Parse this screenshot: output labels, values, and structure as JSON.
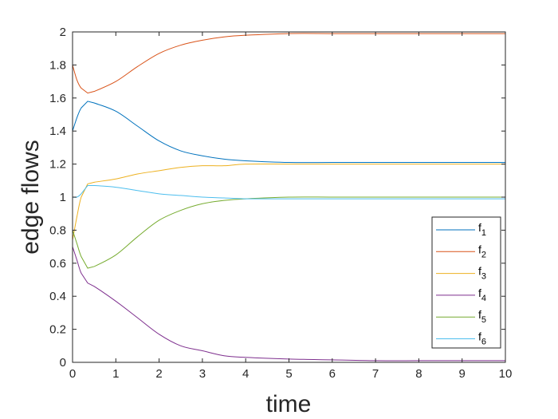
{
  "chart_data": {
    "type": "line",
    "title": "",
    "xlabel": "time",
    "ylabel": "edge flows",
    "xlim": [
      0,
      10
    ],
    "ylim": [
      0,
      2
    ],
    "xticks": [
      0,
      1,
      2,
      3,
      4,
      5,
      6,
      7,
      8,
      9,
      10
    ],
    "yticks": [
      0,
      0.2,
      0.4,
      0.6,
      0.8,
      1,
      1.2,
      1.4,
      1.6,
      1.8,
      2
    ],
    "xtick_labels": [
      "0",
      "1",
      "2",
      "3",
      "4",
      "5",
      "6",
      "7",
      "8",
      "9",
      "10"
    ],
    "ytick_labels": [
      "0",
      "0.2",
      "0.4",
      "0.6",
      "0.8",
      "1",
      "1.2",
      "1.4",
      "1.6",
      "1.8",
      "2"
    ],
    "grid": false,
    "legend_position": "lower right (inside)",
    "x": [
      0,
      0.1,
      0.2,
      0.35,
      0.5,
      1,
      1.5,
      2,
      2.5,
      3,
      3.5,
      4,
      5,
      6,
      7,
      8,
      9,
      10
    ],
    "series": [
      {
        "name": "f1",
        "label_main": "f",
        "label_sub": "1",
        "color": "#0072BD",
        "values": [
          1.4,
          1.48,
          1.54,
          1.58,
          1.57,
          1.52,
          1.43,
          1.34,
          1.28,
          1.25,
          1.23,
          1.22,
          1.21,
          1.21,
          1.21,
          1.21,
          1.21,
          1.21
        ]
      },
      {
        "name": "f2",
        "label_main": "f",
        "label_sub": "2",
        "color": "#D95319",
        "values": [
          1.8,
          1.71,
          1.66,
          1.63,
          1.64,
          1.7,
          1.79,
          1.87,
          1.92,
          1.95,
          1.97,
          1.98,
          1.99,
          1.99,
          1.99,
          1.99,
          1.99,
          1.99
        ]
      },
      {
        "name": "f3",
        "label_main": "f",
        "label_sub": "3",
        "color": "#EDB120",
        "values": [
          0.74,
          0.88,
          1.0,
          1.08,
          1.09,
          1.11,
          1.14,
          1.16,
          1.18,
          1.19,
          1.19,
          1.2,
          1.2,
          1.2,
          1.2,
          1.2,
          1.2,
          1.2
        ]
      },
      {
        "name": "f4",
        "label_main": "f",
        "label_sub": "4",
        "color": "#7E2F8E",
        "values": [
          0.7,
          0.62,
          0.54,
          0.48,
          0.46,
          0.37,
          0.27,
          0.17,
          0.1,
          0.07,
          0.04,
          0.03,
          0.02,
          0.015,
          0.01,
          0.01,
          0.01,
          0.01
        ]
      },
      {
        "name": "f5",
        "label_main": "f",
        "label_sub": "5",
        "color": "#77AC30",
        "values": [
          0.8,
          0.72,
          0.64,
          0.57,
          0.58,
          0.65,
          0.76,
          0.86,
          0.92,
          0.96,
          0.98,
          0.99,
          1.0,
          1.0,
          1.0,
          1.0,
          1.0,
          1.0
        ]
      },
      {
        "name": "f6",
        "label_main": "f",
        "label_sub": "6",
        "color": "#4DBEEE",
        "values": [
          1.0,
          1.0,
          1.02,
          1.07,
          1.07,
          1.06,
          1.04,
          1.02,
          1.01,
          1.0,
          0.995,
          0.99,
          0.99,
          0.99,
          0.99,
          0.99,
          0.99,
          0.99
        ]
      }
    ]
  }
}
